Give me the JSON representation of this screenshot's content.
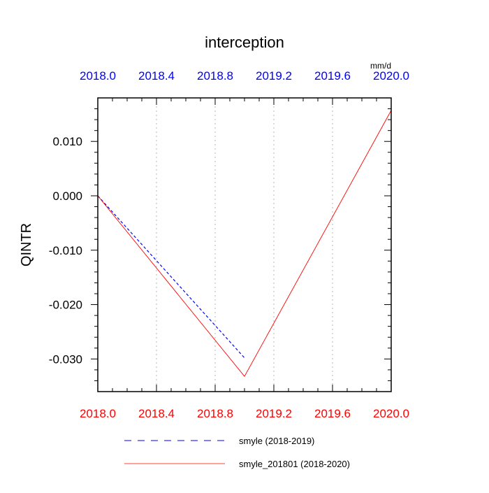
{
  "chart_data": {
    "type": "line",
    "title": "interception",
    "units": "mm/d",
    "ylabel": "QINTR",
    "xlim": [
      2018.0,
      2020.0
    ],
    "ylim": [
      -0.036,
      0.018
    ],
    "x_ticks": [
      2018.0,
      2018.4,
      2018.8,
      2019.2,
      2019.6,
      2020.0
    ],
    "x_tick_labels": [
      "2018.0",
      "2018.4",
      "2018.8",
      "2019.2",
      "2019.6",
      "2020.0"
    ],
    "y_ticks": [
      0.01,
      0.0,
      -0.01,
      -0.02,
      -0.03
    ],
    "y_tick_labels": [
      "0.010",
      "0.000",
      "-0.010",
      "-0.020",
      "-0.030"
    ],
    "grid": "vertical dotted",
    "legend_position": "bottom",
    "top_axis_color": "#0000ff",
    "bottom_axis_color": "#ff0000",
    "series": [
      {
        "name": "smyle (2018-2019)",
        "color": "#0000ff",
        "style": "dashed",
        "x": [
          2018.0,
          2019.0
        ],
        "y": [
          0.0,
          -0.0298
        ]
      },
      {
        "name": "smyle_201801 (2018-2020)",
        "color": "#ff0000",
        "style": "solid",
        "x": [
          2018.0,
          2019.0,
          2020.0
        ],
        "y": [
          0.0,
          -0.0332,
          0.0157
        ]
      }
    ]
  }
}
